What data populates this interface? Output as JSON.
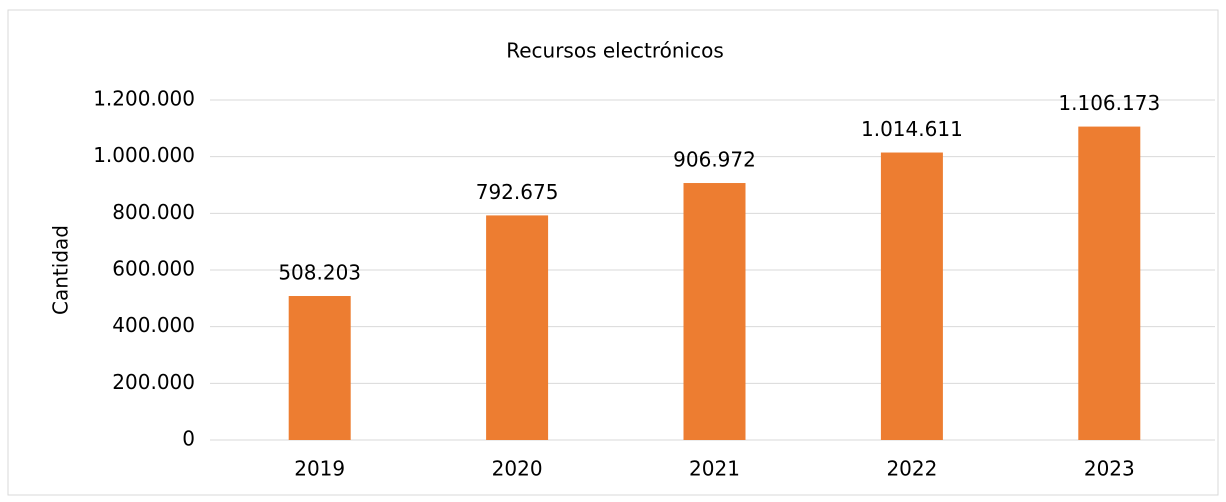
{
  "chart_data": {
    "type": "bar",
    "title": "Recursos electrónicos",
    "y_label": "Cantidad",
    "categories": [
      "2019",
      "2020",
      "2021",
      "2022",
      "2023"
    ],
    "values": [
      508203,
      792675,
      906972,
      1014611,
      1106173
    ],
    "value_labels": [
      "508.203",
      "792.675",
      "906.972",
      "1.014.611",
      "1.106.173"
    ],
    "color": "#ed7d31",
    "ylim": [
      0,
      1200000
    ],
    "yticks": [
      0,
      {
        "value": 200000,
        "label": "200.000"
      },
      {
        "value": 400000,
        "label": "400.000"
      },
      {
        "value": 600000,
        "label": "600.000"
      },
      {
        "value": 800000,
        "label": "800.000"
      },
      {
        "value": 1000000,
        "label": "1.000.000"
      },
      {
        "value": 1200000,
        "label": "1.200.000"
      }
    ],
    "grid": true
  }
}
